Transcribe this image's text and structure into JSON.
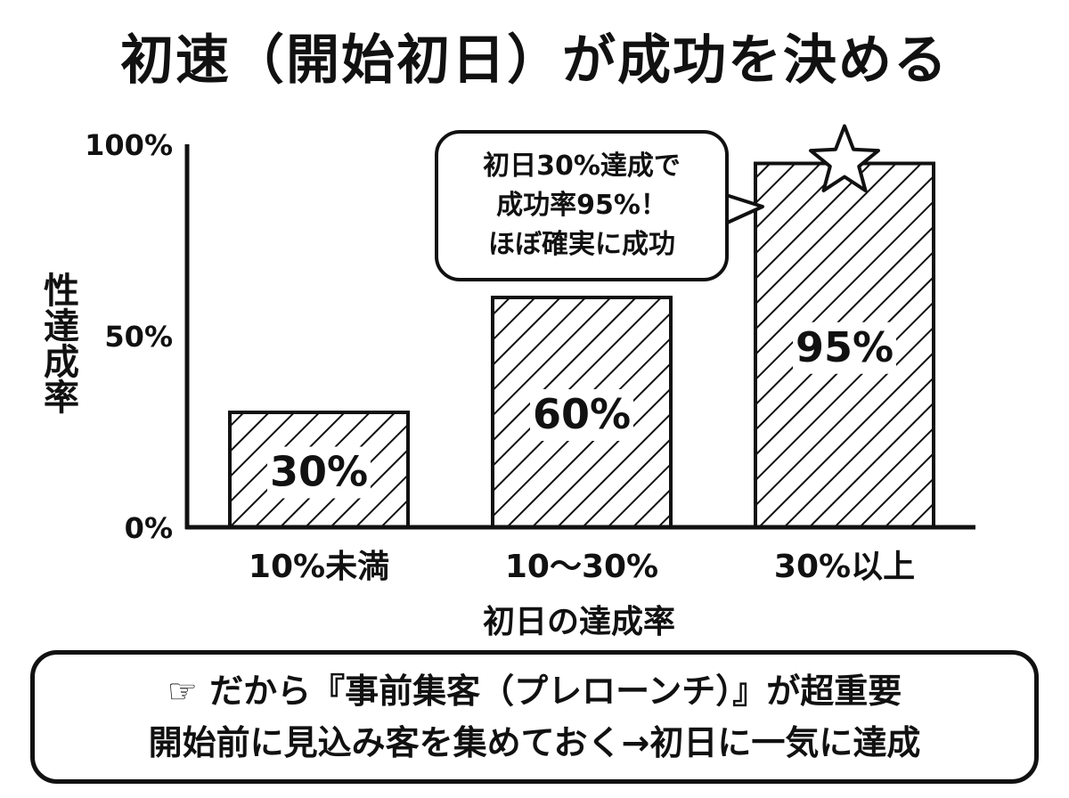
{
  "chart_data": {
    "type": "bar",
    "title": "初速（開始初日）が成功を決める",
    "xlabel": "初日の達成率",
    "ylabel": "性達成率",
    "categories": [
      "10%未満",
      "10〜30%",
      "30%以上"
    ],
    "values": [
      30,
      60,
      95
    ],
    "data_labels": [
      "30%",
      "60%",
      "95%"
    ],
    "y_ticks": [
      {
        "value": 0,
        "label": "0%"
      },
      {
        "value": 50,
        "label": "50%"
      },
      {
        "value": 100,
        "label": "100%"
      }
    ],
    "ylim": [
      0,
      100
    ],
    "grid": false,
    "bar_fill": "diagonal-hatch",
    "highlight_icon": "star-icon",
    "annotation": {
      "lines": [
        "初日30%達成で",
        "成功率95%！",
        "ほぼ確実に成功"
      ]
    }
  },
  "footer": {
    "icon": "pointing-hand-icon",
    "line1": "だから『事前集客（プレローンチ）』が超重要",
    "line2": "開始前に見込み客を集めておく→初日に一気に達成"
  },
  "colors": {
    "ink": "#111111",
    "background": "#ffffff"
  }
}
